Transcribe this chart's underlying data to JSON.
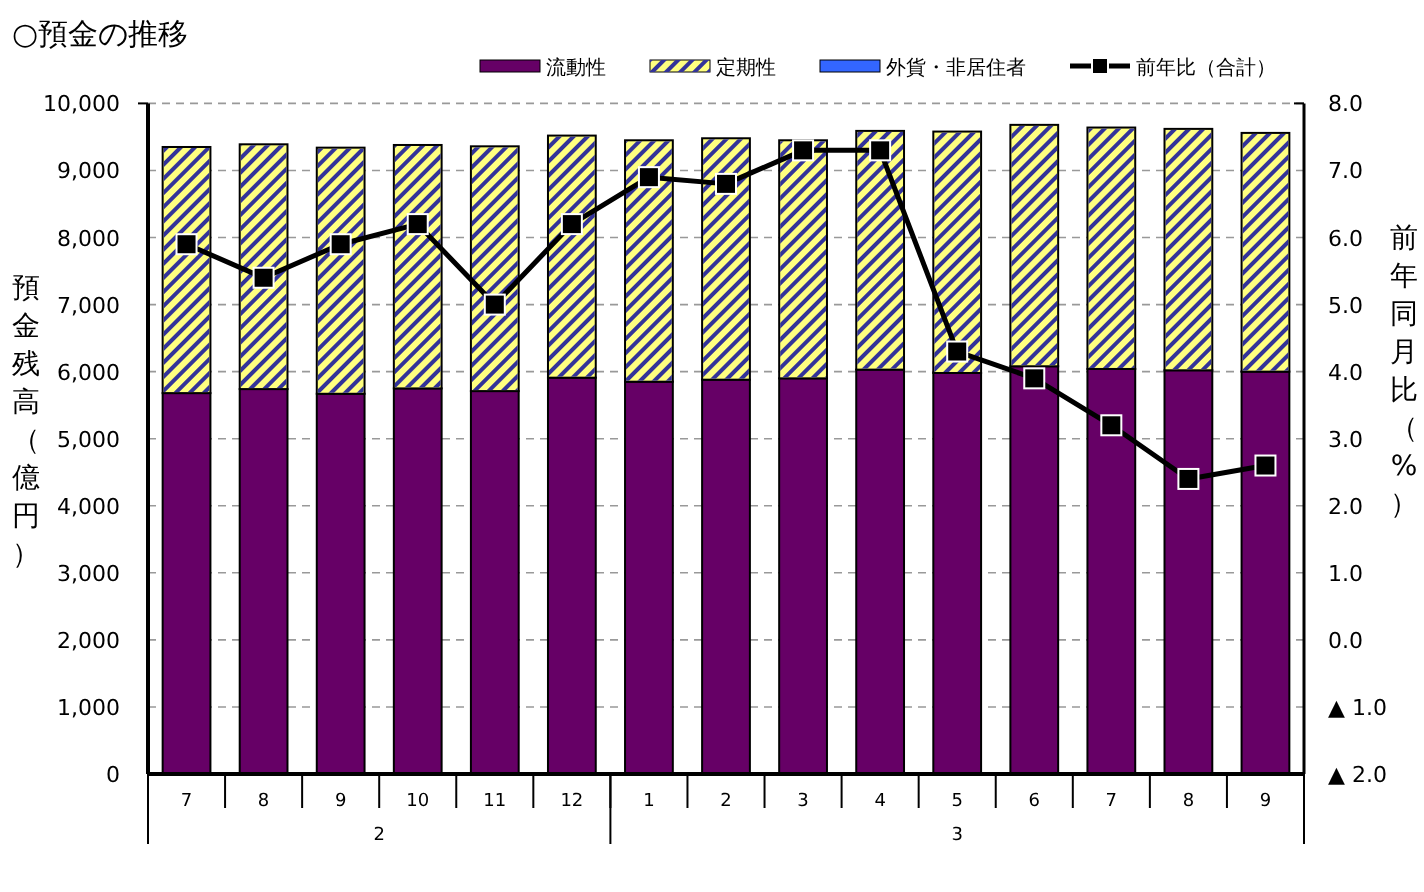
{
  "chart_data": {
    "type": "bar",
    "stacked": true,
    "title": "○預金の推移",
    "ylabel": "預金残高（億円）",
    "y2label": "前年同月比（%）",
    "categories": [
      "7",
      "8",
      "9",
      "10",
      "11",
      "12",
      "1",
      "2",
      "3",
      "4",
      "5",
      "6",
      "7",
      "8",
      "9"
    ],
    "annotations": [
      "2",
      "3"
    ],
    "series": [
      {
        "name": "流動性",
        "color": "#660066",
        "values": [
          5680,
          5740,
          5670,
          5750,
          5710,
          5910,
          5850,
          5880,
          5900,
          6030,
          5980,
          6080,
          6040,
          6020,
          6000
        ]
      },
      {
        "name": "定期性",
        "color": "#ffff80",
        "values": [
          3670,
          3650,
          3670,
          3630,
          3650,
          3610,
          3600,
          3600,
          3550,
          3560,
          3600,
          3600,
          3600,
          3600,
          3560
        ]
      },
      {
        "name": "外貨・非居住者",
        "color": "#3366ff",
        "values": [
          null,
          null,
          null,
          null,
          null,
          null,
          null,
          null,
          null,
          null,
          null,
          null,
          null,
          null,
          null
        ]
      },
      {
        "name": "前年比（合計）",
        "type": "line",
        "axis": "y2",
        "color": "#000000",
        "marker": "square",
        "values": [
          5.9,
          5.4,
          5.9,
          6.2,
          5.0,
          6.2,
          6.9,
          6.8,
          7.3,
          7.3,
          4.3,
          3.9,
          3.2,
          2.4,
          2.6
        ]
      }
    ],
    "ylim": [
      0,
      10000
    ],
    "yticks": [
      {
        "value": 0,
        "label": "0"
      },
      {
        "value": 1000,
        "label": "1,000"
      },
      {
        "value": 2000,
        "label": "2,000"
      },
      {
        "value": 3000,
        "label": "3,000"
      },
      {
        "value": 4000,
        "label": "4,000"
      },
      {
        "value": 5000,
        "label": "5,000"
      },
      {
        "value": 6000,
        "label": "6,000"
      },
      {
        "value": 7000,
        "label": "7,000"
      },
      {
        "value": 8000,
        "label": "8,000"
      },
      {
        "value": 9000,
        "label": "9,000"
      },
      {
        "value": 10000,
        "label": "10,000"
      }
    ],
    "y2lim": [
      -2,
      8
    ],
    "y2ticks": [
      {
        "value": -2,
        "label": "▲ 2.0"
      },
      {
        "value": -1,
        "label": "▲ 1.0"
      },
      {
        "value": 0,
        "label": "0.0"
      },
      {
        "value": 1,
        "label": "1.0"
      },
      {
        "value": 2,
        "label": "2.0"
      },
      {
        "value": 3,
        "label": "3.0"
      },
      {
        "value": 4,
        "label": "4.0"
      },
      {
        "value": 5,
        "label": "5.0"
      },
      {
        "value": 6,
        "label": "6.0"
      },
      {
        "value": 7,
        "label": "7.0"
      },
      {
        "value": 8,
        "label": "8.0"
      }
    ],
    "grid": "y",
    "legend": "top right"
  }
}
